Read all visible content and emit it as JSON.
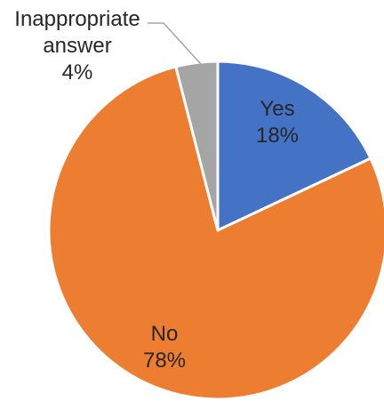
{
  "chart_data": {
    "type": "pie",
    "title": "",
    "slices": [
      {
        "label": "Yes",
        "value": 18,
        "value_label": "18%",
        "color": "#4472C4"
      },
      {
        "label": "No",
        "value": 78,
        "value_label": "78%",
        "color": "#ED7D31"
      },
      {
        "label": "Inappropriate answer",
        "value": 4,
        "value_label": "4%",
        "color": "#A5A5A5"
      }
    ],
    "start_angle_deg": 0,
    "direction": "clockwise",
    "legend": "none",
    "leader_line_color": "#A6A6A6"
  }
}
